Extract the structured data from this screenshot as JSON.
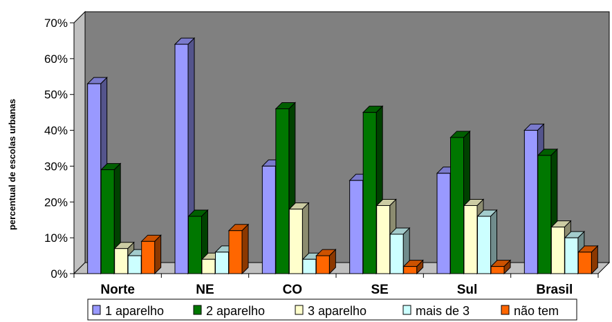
{
  "chart_data": {
    "type": "bar",
    "title": "",
    "xlabel": "",
    "ylabel": "percentual de escolas urbanas",
    "categories": [
      "Norte",
      "NE",
      "CO",
      "SE",
      "Sul",
      "Brasil"
    ],
    "y_ticks": [
      "0%",
      "10%",
      "20%",
      "30%",
      "40%",
      "50%",
      "60%",
      "70%"
    ],
    "ylim": [
      0,
      70
    ],
    "grid": false,
    "legend_position": "bottom",
    "plot_background": "#808080",
    "series": [
      {
        "name": "1 aparelho",
        "color": "#9999ff",
        "values": [
          53,
          64,
          30,
          26,
          28,
          40
        ]
      },
      {
        "name": "2 aparelho",
        "color": "#007700",
        "values": [
          29,
          16,
          46,
          45,
          38,
          33
        ]
      },
      {
        "name": "3 aparelho",
        "color": "#ffffcc",
        "values": [
          7,
          4,
          18,
          19,
          19,
          13
        ]
      },
      {
        "name": "mais de 3",
        "color": "#ccffff",
        "values": [
          5,
          6,
          4,
          11,
          16,
          10
        ]
      },
      {
        "name": "não tem",
        "color": "#ff6600",
        "values": [
          9,
          12,
          5,
          2,
          2,
          6
        ]
      }
    ]
  }
}
